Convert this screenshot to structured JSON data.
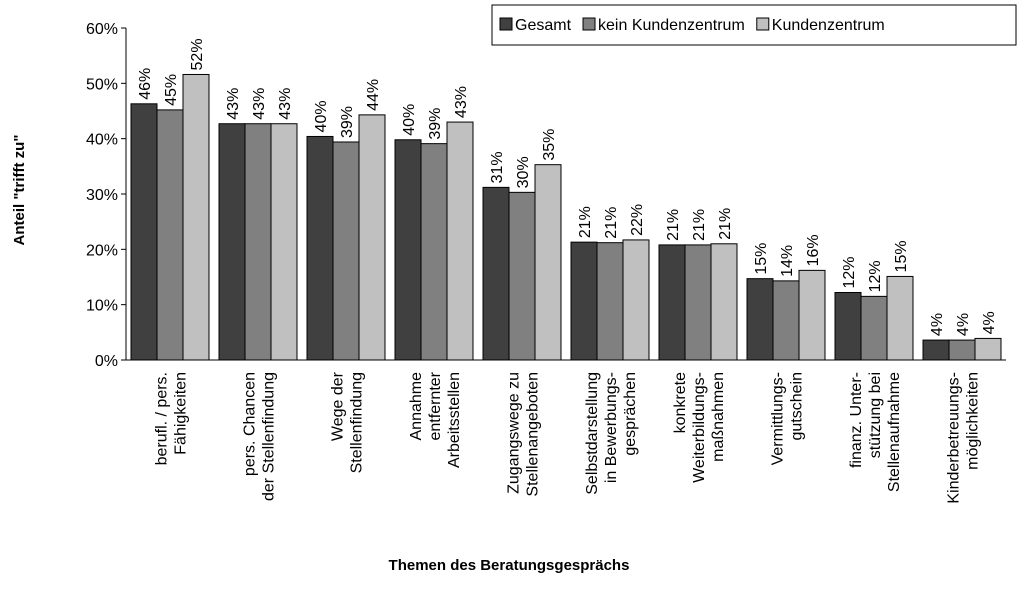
{
  "chart_data": {
    "type": "bar",
    "x_label": "Themen des Beratungsgesprächs",
    "y_label": "Anteil \"trifft zu\"",
    "categories": [
      "berufl. / pers.\nFähigkeiten",
      "pers. Chancen\nder Stellenfindung",
      "Wege der\nStellenfindung",
      "Annahme\nentfernter\nArbeitsstellen",
      "Zugangswege zu\nStellenangeboten",
      "Selbstdarstellung\nin Bewerbungs-\ngesprächen",
      "konkrete\nWeiterbildungs-\nmaßnahmen",
      "Vermittlungs-\ngutschein",
      "finanz. Unter-\nstützung bei\nStellenaufnahme",
      "Kinderbetreuungs-\nmöglichkeiten"
    ],
    "series": [
      {
        "name": "Gesamt",
        "color": "#404040",
        "values": [
          46.3,
          42.7,
          40.4,
          39.8,
          31.2,
          21.3,
          20.8,
          14.7,
          12.2,
          3.6
        ],
        "value_labels": [
          "46%",
          "43%",
          "40%",
          "40%",
          "31%",
          "21%",
          "21%",
          "15%",
          "12%",
          "4%"
        ]
      },
      {
        "name": "kein Kundenzentrum",
        "color": "#808080",
        "values": [
          45.2,
          42.7,
          39.4,
          39.1,
          30.3,
          21.2,
          20.8,
          14.3,
          11.5,
          3.6
        ],
        "value_labels": [
          "45%",
          "43%",
          "39%",
          "39%",
          "30%",
          "21%",
          "21%",
          "14%",
          "12%",
          "4%"
        ]
      },
      {
        "name": "Kundenzentrum",
        "color": "#c0c0c0",
        "values": [
          51.6,
          42.7,
          44.3,
          43.0,
          35.3,
          21.7,
          21.0,
          16.2,
          15.1,
          3.9
        ],
        "value_labels": [
          "52%",
          "43%",
          "44%",
          "43%",
          "35%",
          "22%",
          "21%",
          "16%",
          "15%",
          "4%"
        ]
      }
    ],
    "ylim": [
      0,
      60
    ],
    "yticks": [
      {
        "value": 0,
        "label": "0%"
      },
      {
        "value": 10,
        "label": "10%"
      },
      {
        "value": 20,
        "label": "20%"
      },
      {
        "value": 30,
        "label": "30%"
      },
      {
        "value": 40,
        "label": "40%"
      },
      {
        "value": 50,
        "label": "50%"
      },
      {
        "value": 60,
        "label": "60%"
      }
    ],
    "grid": false,
    "legend": "top-right"
  }
}
